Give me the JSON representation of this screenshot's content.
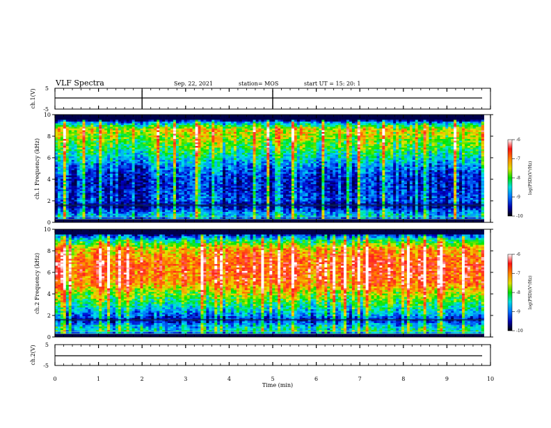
{
  "header": {
    "title": "VLF Spectra",
    "date": "Sep. 22, 2021",
    "station": "station= MOS",
    "start": "start  UT =   15: 20: 1"
  },
  "chart_data": [
    {
      "type": "line",
      "panel": "ch1-waveform",
      "ylabel": "ch.1(V)",
      "yticks": [
        "5",
        "-5"
      ],
      "ylim": [
        -5,
        5
      ],
      "xlim": [
        0,
        10
      ],
      "series": [
        {
          "values": [
            -1.0,
            -1.0,
            -1.0,
            -1.0
          ]
        }
      ],
      "spikes_min": [
        2.0,
        5.0
      ]
    },
    {
      "type": "heatmap",
      "panel": "ch1-spectrogram",
      "ylabel": "ch.1 Frequency (kHz)",
      "ylim": [
        0,
        10
      ],
      "yticks": [
        "0",
        "2",
        "4",
        "6",
        "8",
        "10"
      ],
      "xlim": [
        0,
        9.85
      ],
      "colorbar": {
        "label": "log(PSD)(V²/Hz)",
        "ticks": [
          "-6",
          "-7",
          "-8",
          "-9",
          "-10"
        ],
        "range": [
          -10,
          -6
        ]
      },
      "profile": [
        {
          "f": 10.0,
          "psd": -10.0
        },
        {
          "f": 9.5,
          "psd": -10.0
        },
        {
          "f": 9.2,
          "psd": -8.6
        },
        {
          "f": 8.6,
          "psd": -7.4
        },
        {
          "f": 7.8,
          "psd": -7.7
        },
        {
          "f": 7.0,
          "psd": -8.0
        },
        {
          "f": 6.0,
          "psd": -8.5
        },
        {
          "f": 5.0,
          "psd": -9.1
        },
        {
          "f": 4.0,
          "psd": -9.4
        },
        {
          "f": 3.0,
          "psd": -9.4
        },
        {
          "f": 2.0,
          "psd": -9.2
        },
        {
          "f": 1.6,
          "psd": -9.8
        },
        {
          "f": 1.0,
          "psd": -9.0
        },
        {
          "f": 0.5,
          "psd": -8.6
        },
        {
          "f": 0.2,
          "psd": -10.0
        },
        {
          "f": 0.0,
          "psd": -10.0
        }
      ]
    },
    {
      "type": "heatmap",
      "panel": "ch2-spectrogram",
      "ylabel": "ch.2 Frequency (kHz)",
      "ylim": [
        0,
        10
      ],
      "yticks": [
        "0",
        "2",
        "4",
        "6",
        "8",
        "10"
      ],
      "xlim": [
        0,
        9.85
      ],
      "colorbar": {
        "label": "log(PSD)(V²/Hz)",
        "ticks": [
          "-6",
          "-7",
          "-8",
          "-9",
          "-10"
        ],
        "range": [
          -10,
          -6
        ]
      },
      "profile": [
        {
          "f": 10.0,
          "psd": -10.0
        },
        {
          "f": 9.5,
          "psd": -9.4
        },
        {
          "f": 9.0,
          "psd": -8.3
        },
        {
          "f": 8.2,
          "psd": -7.2
        },
        {
          "f": 7.0,
          "psd": -6.7
        },
        {
          "f": 6.0,
          "psd": -6.7
        },
        {
          "f": 5.0,
          "psd": -6.9
        },
        {
          "f": 4.0,
          "psd": -7.6
        },
        {
          "f": 3.0,
          "psd": -8.2
        },
        {
          "f": 2.0,
          "psd": -8.9
        },
        {
          "f": 1.6,
          "psd": -9.5
        },
        {
          "f": 1.0,
          "psd": -8.6
        },
        {
          "f": 0.5,
          "psd": -8.3
        },
        {
          "f": 0.2,
          "psd": -10.0
        },
        {
          "f": 0.0,
          "psd": -10.0
        }
      ]
    },
    {
      "type": "line",
      "panel": "ch2-waveform",
      "ylabel": "ch.2(V)",
      "yticks": [
        "5",
        "-5"
      ],
      "ylim": [
        -5,
        5
      ],
      "xlim": [
        0,
        10
      ],
      "series": [
        {
          "values": [
            -1.0,
            -1.0,
            -1.0,
            -1.0
          ]
        }
      ],
      "spikes_min": []
    }
  ],
  "xaxis": {
    "label": "Time (min)",
    "ticks": [
      "0",
      "1",
      "2",
      "3",
      "4",
      "5",
      "6",
      "7",
      "8",
      "9",
      "10"
    ],
    "xlim": [
      0,
      10
    ]
  },
  "colors": {
    "colormap": [
      "#00004a",
      "#0000cc",
      "#0080ff",
      "#00e6e6",
      "#00e600",
      "#e6e600",
      "#ff8000",
      "#ff2020",
      "#ffffff"
    ]
  }
}
